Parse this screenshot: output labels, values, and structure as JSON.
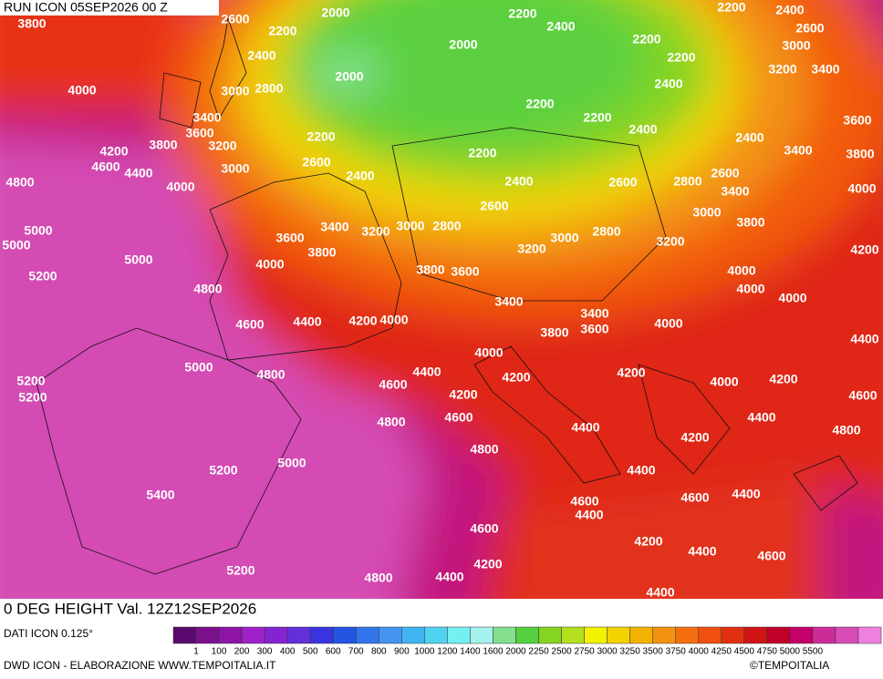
{
  "header": {
    "title": "RUN ICON 05SEP2026 00 Z"
  },
  "map": {
    "contour_labels": [
      "3800",
      "2600",
      "2000",
      "2200",
      "2200",
      "2400",
      "2200",
      "2400",
      "2600",
      "2000",
      "2200",
      "3000",
      "2400",
      "2000",
      "2200",
      "3200",
      "3400",
      "4000",
      "3000",
      "2800",
      "2400",
      "3400",
      "2200",
      "2200",
      "3600",
      "3600",
      "2400",
      "4200",
      "3800",
      "3200",
      "2200",
      "2400",
      "3400",
      "3800",
      "4600",
      "4400",
      "3000",
      "2600",
      "2200",
      "2600",
      "4800",
      "4000",
      "2400",
      "2400",
      "2600",
      "2800",
      "3400",
      "4000",
      "2600",
      "3000",
      "5000",
      "3400",
      "3200",
      "3000",
      "2800",
      "2800",
      "3800",
      "5000",
      "3600",
      "3000",
      "3200",
      "4200",
      "5000",
      "3800",
      "3200",
      "4000",
      "3800",
      "3600",
      "4000",
      "5200",
      "4800",
      "4000",
      "4000",
      "3400",
      "3400",
      "4600",
      "4400",
      "4200",
      "4000",
      "3600",
      "3800",
      "4000",
      "4400",
      "4000",
      "5000",
      "4800",
      "4400",
      "4200",
      "4200",
      "4000",
      "4200",
      "5200",
      "4600",
      "4200",
      "5200",
      "4600",
      "4800",
      "4600",
      "4400",
      "4400",
      "4800",
      "4800",
      "4200",
      "5000",
      "5200",
      "4400",
      "5400",
      "4600",
      "4600",
      "4400",
      "4400",
      "4600",
      "4200",
      "4400",
      "4600",
      "4200",
      "5200",
      "4800",
      "4400",
      "4400"
    ]
  },
  "footer": {
    "title": "0 DEG HEIGHT Val. 12Z12SEP2026",
    "source": "DATI ICON 0.125°",
    "credit": "DWD ICON - ELABORAZIONE WWW.TEMPOITALIA.IT",
    "copyright": "©TEMPOITALIA"
  },
  "legend": {
    "colors": [
      "#5a0a6e",
      "#7a108a",
      "#8e14a8",
      "#a020c8",
      "#8424d0",
      "#6230d8",
      "#3a34e0",
      "#2454e2",
      "#3474ea",
      "#4494f0",
      "#40b4f2",
      "#50d2f2",
      "#74f0f0",
      "#a4f2ee",
      "#84e08c",
      "#54d040",
      "#84d424",
      "#b4e020",
      "#f2f200",
      "#f2d200",
      "#f2b200",
      "#f29210",
      "#f27010",
      "#f05010",
      "#e03010",
      "#d01414",
      "#c00028",
      "#c4006a",
      "#cc2c98",
      "#d84cb8",
      "#f080e0"
    ],
    "labels": [
      "1",
      "100",
      "200",
      "300",
      "400",
      "500",
      "600",
      "700",
      "800",
      "900",
      "1000",
      "1200",
      "1400",
      "1600",
      "2000",
      "2250",
      "2500",
      "2750",
      "3000",
      "3250",
      "3500",
      "3750",
      "4000",
      "4250",
      "4500",
      "4750",
      "5000",
      "5500"
    ]
  }
}
